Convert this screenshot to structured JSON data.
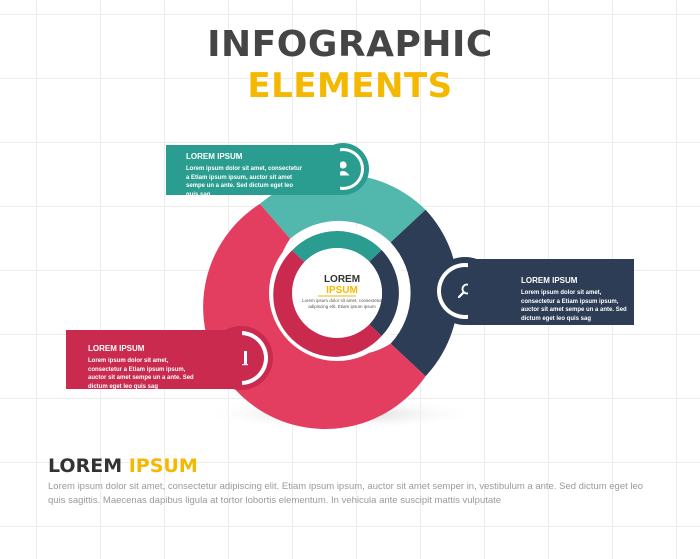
{
  "header": {
    "title_line1": "INFOGRAPHIC",
    "title_line2": "ELEMENTS"
  },
  "colors": {
    "teal": "#2b9d90",
    "teal_light": "#52b8ae",
    "navy": "#2d3d55",
    "pink": "#c92a4e",
    "pink_light": "#e33e60",
    "accent_yellow": "#f5b800"
  },
  "boxes": [
    {
      "id": "teal",
      "title": "LOREM IPSUM",
      "text": "Lorem ipsum dolor sit amet, consectetur a Etiam ipsum ipsum, auctor sit amet sempe un a ante. Sed dictum eget leo quis sag",
      "icon": "user-icon"
    },
    {
      "id": "navy",
      "title": "LOREM IPSUM",
      "text": "Lorem ipsum dolor sit amet, consectetur a Etiam ipsum ipsum, auctor sit amet sempe un a ante. Sed dictum eget leo quis sag",
      "icon": "search-icon"
    },
    {
      "id": "pink",
      "title": "LOREM IPSUM",
      "text": "Lorem ipsum dolor sit amet, consectetur a Etiam ipsum ipsum, auctor sit amet sempe un a ante. Sed dictum eget leo quis sag",
      "icon": "bar-chart-icon"
    }
  ],
  "center": {
    "title_line1": "LOREM",
    "title_line2": "IPSUM",
    "text": "Lorem ipsum dolor sit amet, consectetur adipiscing elit. Etiam ipsum ipsum"
  },
  "footer": {
    "title_word1": "LOREM",
    "title_word2": "IPSUM",
    "text": "Lorem ipsum dolor sit amet, consectetur adipiscing elit. Etiam ipsum ipsum, auctor sit amet semper in, vestibulum a ante. Sed dictum eget leo quis sagittis. Maecenas dapibus ligula at tortor lobortis elementum. In vehicula ante suscipit mattis vulputate"
  }
}
